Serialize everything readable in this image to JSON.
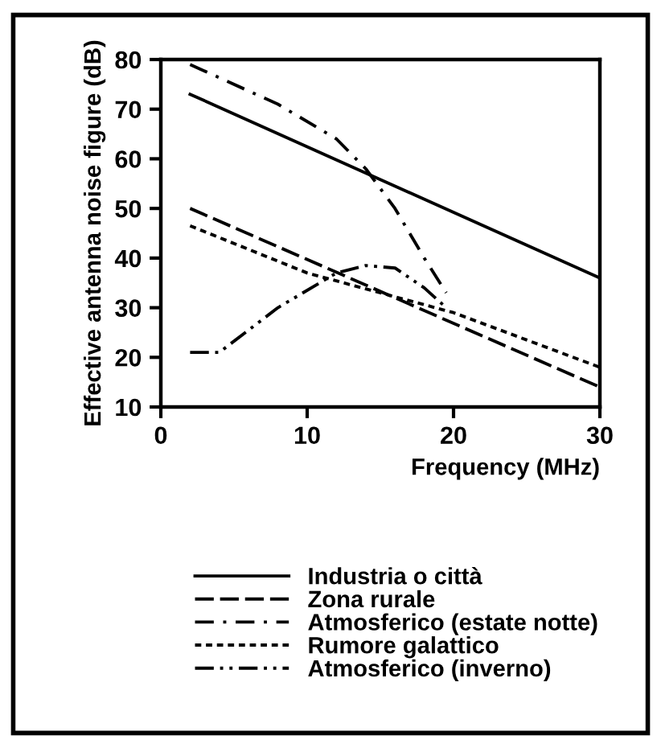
{
  "chart_data": {
    "type": "line",
    "xlabel": "Frequency (MHz)",
    "ylabel": "Effective antenna noise figure (dB)",
    "xlim": [
      0,
      30
    ],
    "ylim": [
      10,
      80
    ],
    "xticks": [
      0,
      10,
      20,
      30
    ],
    "yticks": [
      10,
      20,
      30,
      40,
      50,
      60,
      70,
      80
    ],
    "grid": false,
    "legend": "bottom",
    "marker": "none",
    "series": [
      {
        "name": "Industria o città",
        "color": "#000000",
        "line_style": "solid",
        "x": [
          2,
          30
        ],
        "values": [
          73,
          36
        ]
      },
      {
        "name": "Zona rurale",
        "color": "#000000",
        "line_style": "dashed",
        "x": [
          2,
          30
        ],
        "values": [
          50,
          14
        ]
      },
      {
        "name": "Atmosferico (estate notte)",
        "color": "#000000",
        "line_style": "dashdot",
        "x": [
          2,
          8,
          12,
          14,
          16,
          18,
          19.5
        ],
        "values": [
          79,
          71,
          64,
          58,
          50,
          40,
          33
        ]
      },
      {
        "name": "Rumore galattico",
        "color": "#000000",
        "line_style": "dotted",
        "x": [
          2,
          10,
          20,
          30
        ],
        "values": [
          46.5,
          37,
          29,
          18
        ]
      },
      {
        "name": "Atmosferico (inverno)",
        "color": "#000000",
        "line_style": "dashdotdot",
        "x": [
          2,
          4,
          8,
          12,
          14,
          16,
          18,
          19.5
        ],
        "values": [
          21,
          21,
          30,
          37,
          38.5,
          38,
          34,
          30
        ]
      }
    ]
  }
}
